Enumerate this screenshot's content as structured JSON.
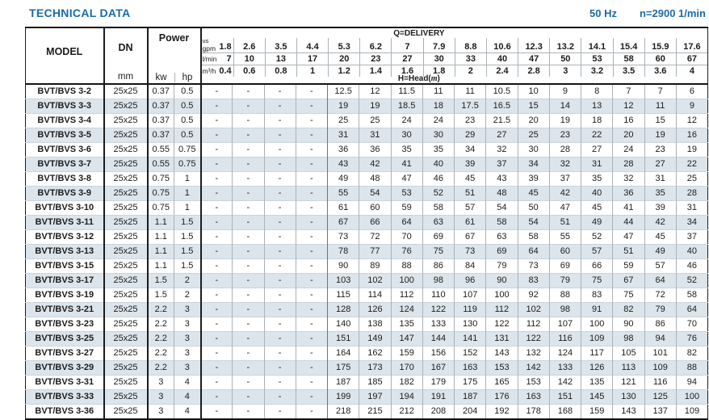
{
  "header": {
    "title": "TECHNICAL DATA",
    "frequency": "50 Hz",
    "speed": "n=2900 1/min"
  },
  "colors": {
    "accent_blue": "#1a6ba8",
    "row_shade": "#dce5eb",
    "border_black": "#1c1c1c",
    "grid_gray": "#a9b3ba"
  },
  "table": {
    "model_header": "MODEL",
    "dn_header": "DN",
    "dn_unit": "mm",
    "power_header": "Power",
    "kw_header": "kw",
    "hp_header": "hp",
    "delivery_label": "Q=DELIVERY",
    "head_label_open": "H=Head(",
    "head_unit": "m",
    "head_label_close": ")",
    "q_rows": [
      {
        "unit_top": "us",
        "unit": "gpm",
        "values": [
          "1.8",
          "2.6",
          "3.5",
          "4.4",
          "5.3",
          "6.2",
          "7",
          "7.9",
          "8.8",
          "10.6",
          "12.3",
          "13.2",
          "14.1",
          "15.4",
          "15.9",
          "17.6"
        ]
      },
      {
        "unit": "l/min",
        "values": [
          "7",
          "10",
          "13",
          "17",
          "20",
          "23",
          "27",
          "30",
          "33",
          "40",
          "47",
          "50",
          "53",
          "58",
          "60",
          "67"
        ]
      },
      {
        "unit": "m³/h",
        "values": [
          "0.4",
          "0.6",
          "0.8",
          "1",
          "1.2",
          "1.4",
          "1.6",
          "1.8",
          "2",
          "2.4",
          "2.8",
          "3",
          "3.2",
          "3.5",
          "3.6",
          "4"
        ]
      }
    ],
    "rows": [
      {
        "model": "BVT/BVS 3-2",
        "dn": "25x25",
        "kw": "0.37",
        "hp": "0.5",
        "values": [
          "-",
          "-",
          "-",
          "-",
          "12.5",
          "12",
          "11.5",
          "11",
          "11",
          "10.5",
          "10",
          "9",
          "8",
          "7",
          "7",
          "6"
        ]
      },
      {
        "model": "BVT/BVS 3-3",
        "dn": "25x25",
        "kw": "0.37",
        "hp": "0.5",
        "values": [
          "-",
          "-",
          "-",
          "-",
          "19",
          "19",
          "18.5",
          "18",
          "17.5",
          "16.5",
          "15",
          "14",
          "13",
          "12",
          "11",
          "9"
        ]
      },
      {
        "model": "BVT/BVS 3-4",
        "dn": "25x25",
        "kw": "0.37",
        "hp": "0.5",
        "values": [
          "-",
          "-",
          "-",
          "-",
          "25",
          "25",
          "24",
          "24",
          "23",
          "21.5",
          "20",
          "19",
          "18",
          "16",
          "15",
          "12"
        ]
      },
      {
        "model": "BVT/BVS 3-5",
        "dn": "25x25",
        "kw": "0.37",
        "hp": "0.5",
        "values": [
          "-",
          "-",
          "-",
          "-",
          "31",
          "31",
          "30",
          "30",
          "29",
          "27",
          "25",
          "23",
          "22",
          "20",
          "19",
          "16"
        ]
      },
      {
        "model": "BVT/BVS 3-6",
        "dn": "25x25",
        "kw": "0.55",
        "hp": "0.75",
        "values": [
          "-",
          "-",
          "-",
          "-",
          "36",
          "36",
          "35",
          "35",
          "34",
          "32",
          "30",
          "28",
          "27",
          "24",
          "23",
          "19"
        ]
      },
      {
        "model": "BVT/BVS 3-7",
        "dn": "25x25",
        "kw": "0.55",
        "hp": "0.75",
        "values": [
          "-",
          "-",
          "-",
          "-",
          "43",
          "42",
          "41",
          "40",
          "39",
          "37",
          "34",
          "32",
          "31",
          "28",
          "27",
          "22"
        ]
      },
      {
        "model": "BVT/BVS 3-8",
        "dn": "25x25",
        "kw": "0.75",
        "hp": "1",
        "values": [
          "-",
          "-",
          "-",
          "-",
          "49",
          "48",
          "47",
          "46",
          "45",
          "43",
          "39",
          "37",
          "35",
          "32",
          "31",
          "25"
        ]
      },
      {
        "model": "BVT/BVS 3-9",
        "dn": "25x25",
        "kw": "0.75",
        "hp": "1",
        "values": [
          "-",
          "-",
          "-",
          "-",
          "55",
          "54",
          "53",
          "52",
          "51",
          "48",
          "45",
          "42",
          "40",
          "36",
          "35",
          "28"
        ]
      },
      {
        "model": "BVT/BVS 3-10",
        "dn": "25x25",
        "kw": "0.75",
        "hp": "1",
        "values": [
          "-",
          "-",
          "-",
          "-",
          "61",
          "60",
          "59",
          "58",
          "57",
          "54",
          "50",
          "47",
          "45",
          "41",
          "39",
          "31"
        ]
      },
      {
        "model": "BVT/BVS 3-11",
        "dn": "25x25",
        "kw": "1.1",
        "hp": "1.5",
        "values": [
          "-",
          "-",
          "-",
          "-",
          "67",
          "66",
          "64",
          "63",
          "61",
          "58",
          "54",
          "51",
          "49",
          "44",
          "42",
          "34"
        ]
      },
      {
        "model": "BVT/BVS 3-12",
        "dn": "25x25",
        "kw": "1.1",
        "hp": "1.5",
        "values": [
          "-",
          "-",
          "-",
          "-",
          "73",
          "72",
          "70",
          "69",
          "67",
          "63",
          "58",
          "55",
          "52",
          "47",
          "45",
          "37"
        ]
      },
      {
        "model": "BVT/BVS 3-13",
        "dn": "25x25",
        "kw": "1.1",
        "hp": "1.5",
        "values": [
          "-",
          "-",
          "-",
          "-",
          "78",
          "77",
          "76",
          "75",
          "73",
          "69",
          "64",
          "60",
          "57",
          "51",
          "49",
          "40"
        ]
      },
      {
        "model": "BVT/BVS 3-15",
        "dn": "25x25",
        "kw": "1.1",
        "hp": "1.5",
        "values": [
          "-",
          "-",
          "-",
          "-",
          "90",
          "89",
          "88",
          "86",
          "84",
          "79",
          "73",
          "69",
          "66",
          "59",
          "57",
          "46"
        ]
      },
      {
        "model": "BVT/BVS 3-17",
        "dn": "25x25",
        "kw": "1.5",
        "hp": "2",
        "values": [
          "-",
          "-",
          "-",
          "-",
          "103",
          "102",
          "100",
          "98",
          "96",
          "90",
          "83",
          "79",
          "75",
          "67",
          "64",
          "52"
        ]
      },
      {
        "model": "BVT/BVS 3-19",
        "dn": "25x25",
        "kw": "1.5",
        "hp": "2",
        "values": [
          "-",
          "-",
          "-",
          "-",
          "115",
          "114",
          "112",
          "110",
          "107",
          "100",
          "92",
          "88",
          "83",
          "75",
          "72",
          "58"
        ]
      },
      {
        "model": "BVT/BVS 3-21",
        "dn": "25x25",
        "kw": "2.2",
        "hp": "3",
        "values": [
          "-",
          "-",
          "-",
          "-",
          "128",
          "126",
          "124",
          "122",
          "119",
          "112",
          "102",
          "98",
          "91",
          "82",
          "79",
          "64"
        ]
      },
      {
        "model": "BVT/BVS 3-23",
        "dn": "25x25",
        "kw": "2.2",
        "hp": "3",
        "values": [
          "-",
          "-",
          "-",
          "-",
          "140",
          "138",
          "135",
          "133",
          "130",
          "122",
          "112",
          "107",
          "100",
          "90",
          "86",
          "70"
        ]
      },
      {
        "model": "BVT/BVS 3-25",
        "dn": "25x25",
        "kw": "2.2",
        "hp": "3",
        "values": [
          "-",
          "-",
          "-",
          "-",
          "151",
          "149",
          "147",
          "144",
          "141",
          "131",
          "122",
          "116",
          "109",
          "98",
          "94",
          "76"
        ]
      },
      {
        "model": "BVT/BVS 3-27",
        "dn": "25x25",
        "kw": "2.2",
        "hp": "3",
        "values": [
          "-",
          "-",
          "-",
          "-",
          "164",
          "162",
          "159",
          "156",
          "152",
          "143",
          "132",
          "124",
          "117",
          "105",
          "101",
          "82"
        ]
      },
      {
        "model": "BVT/BVS 3-29",
        "dn": "25x25",
        "kw": "2.2",
        "hp": "3",
        "values": [
          "-",
          "-",
          "-",
          "-",
          "175",
          "173",
          "170",
          "167",
          "163",
          "153",
          "142",
          "133",
          "126",
          "113",
          "109",
          "88"
        ]
      },
      {
        "model": "BVT/BVS 3-31",
        "dn": "25x25",
        "kw": "3",
        "hp": "4",
        "values": [
          "-",
          "-",
          "-",
          "-",
          "187",
          "185",
          "182",
          "179",
          "175",
          "165",
          "153",
          "142",
          "135",
          "121",
          "116",
          "94"
        ]
      },
      {
        "model": "BVT/BVS 3-33",
        "dn": "25x25",
        "kw": "3",
        "hp": "4",
        "values": [
          "-",
          "-",
          "-",
          "-",
          "199",
          "197",
          "194",
          "191",
          "187",
          "176",
          "163",
          "151",
          "145",
          "130",
          "125",
          "100"
        ]
      },
      {
        "model": "BVT/BVS 3-36",
        "dn": "25x25",
        "kw": "3",
        "hp": "4",
        "values": [
          "-",
          "-",
          "-",
          "-",
          "218",
          "215",
          "212",
          "208",
          "204",
          "192",
          "178",
          "168",
          "159",
          "143",
          "137",
          "109"
        ]
      }
    ]
  }
}
